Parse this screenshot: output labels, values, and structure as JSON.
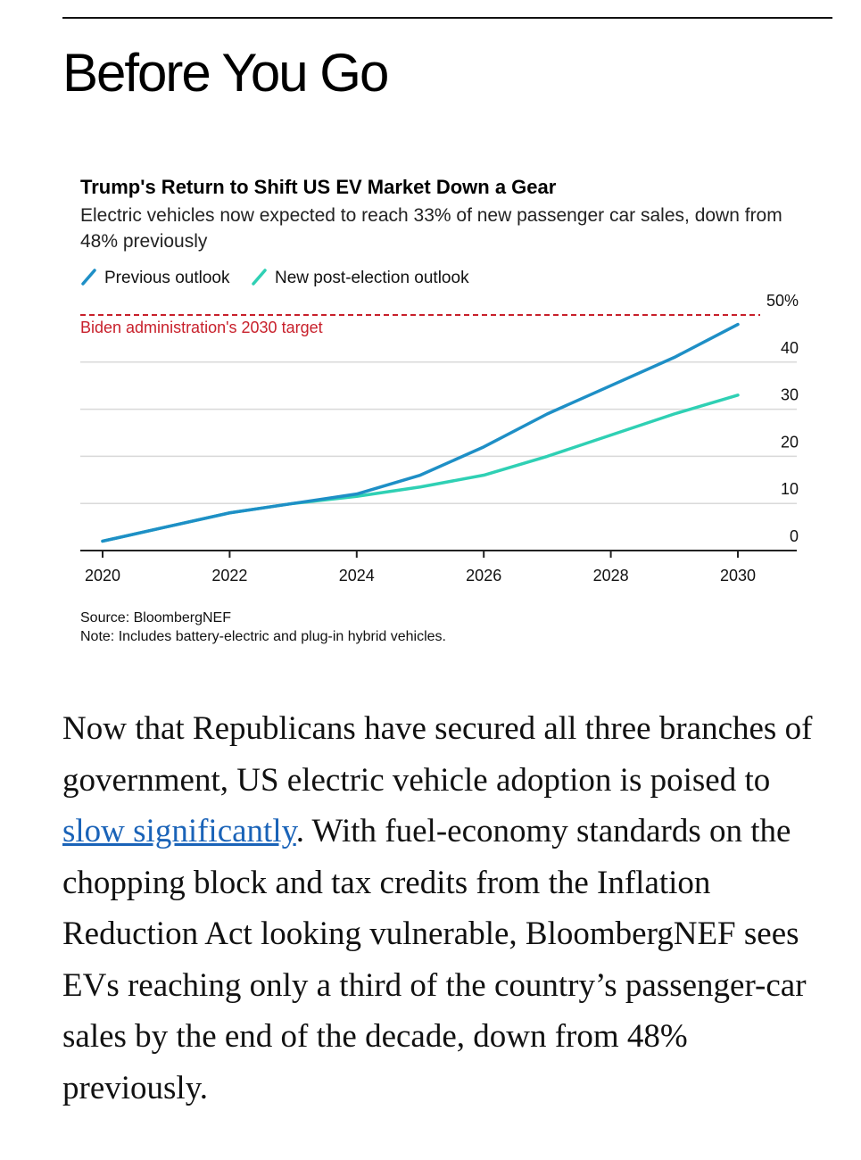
{
  "heading": "Before You Go",
  "chart": {
    "title": "Trump's Return to Shift US EV Market Down a Gear",
    "subtitle": "Electric vehicles now expected to reach 33% of new passenger car sales, down from 48% previously",
    "target_label": "Biden administration's 2030 target",
    "source": "Source: BloombergNEF",
    "note": "Note: Includes battery-electric and plug-in hybrid vehicles.",
    "colors": {
      "previous": "#1e8fc6",
      "new": "#2fd0b4",
      "target": "#c8202b"
    }
  },
  "chart_data": {
    "type": "line",
    "x": [
      2020,
      2021,
      2022,
      2023,
      2024,
      2025,
      2026,
      2027,
      2028,
      2029,
      2030
    ],
    "series": [
      {
        "name": "Previous outlook",
        "values": [
          2,
          5,
          8,
          10,
          12,
          16,
          22,
          29,
          35,
          41,
          48
        ]
      },
      {
        "name": "New post-election outlook",
        "values": [
          2,
          5,
          8,
          10,
          11.5,
          13.5,
          16,
          20,
          24.5,
          29,
          33
        ]
      }
    ],
    "target": {
      "label": "Biden administration's 2030 target",
      "value": 50
    },
    "x_ticks": [
      "2020",
      "2022",
      "2024",
      "2026",
      "2028",
      "2030"
    ],
    "y_ticks": [
      "0",
      "10",
      "20",
      "30",
      "40",
      "50%"
    ],
    "ylim": [
      0,
      50
    ],
    "xlim": [
      2020,
      2030
    ],
    "grid": true,
    "legend_position": "top-left",
    "y_axis_side": "right"
  },
  "article": {
    "before_link": "Now that Republicans have secured all three branches of government, US electric vehicle adoption is poised to ",
    "link_text": "slow significantly",
    "after_link": ". With fuel-economy standards on the chopping block and tax credits from the Inflation Reduction Act looking vulnerable, BloombergNEF sees EVs reaching only a third of the country’s passenger-car sales by the end of the decade, down from 48% previously."
  }
}
